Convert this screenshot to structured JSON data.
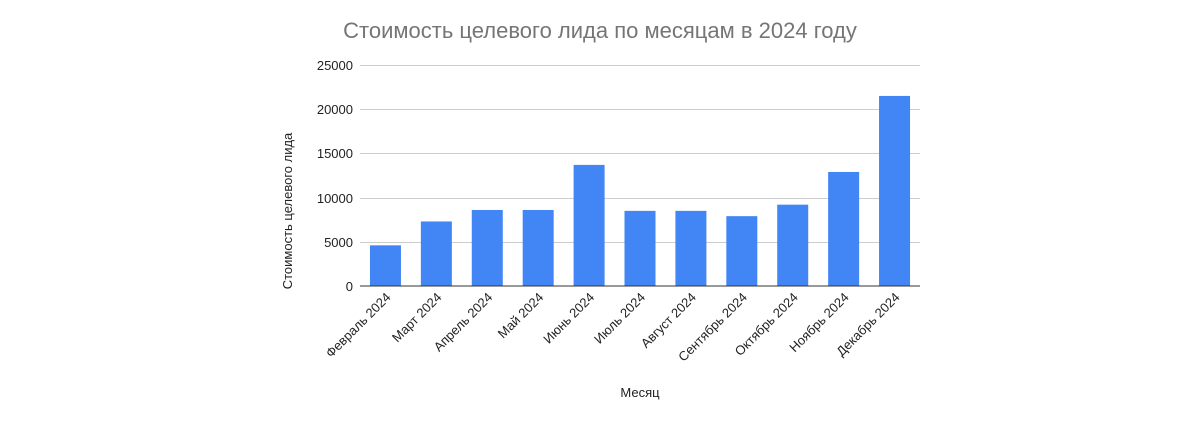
{
  "chart_data": {
    "type": "bar",
    "title": "Стоимость целевого лида по месяцам в 2024 году",
    "xlabel": "Месяц",
    "ylabel": "Стоимость целевого лида",
    "categories": [
      "Февраль 2024",
      "Март 2024",
      "Апрель 2024",
      "Май 2024",
      "Июнь 2024",
      "Июль 2024",
      "Август 2024",
      "Сентябрь 2024",
      "Октябрь 2024",
      "Ноябрь 2024",
      "Декабрь 2024"
    ],
    "values": [
      4600,
      7300,
      8600,
      8600,
      13700,
      8500,
      8500,
      7900,
      9200,
      12900,
      21500
    ],
    "ylim": [
      0,
      25000
    ],
    "yticks": [
      0,
      5000,
      10000,
      15000,
      20000,
      25000
    ],
    "grid": true,
    "legend": "none",
    "bar_color": "#4285f4"
  }
}
